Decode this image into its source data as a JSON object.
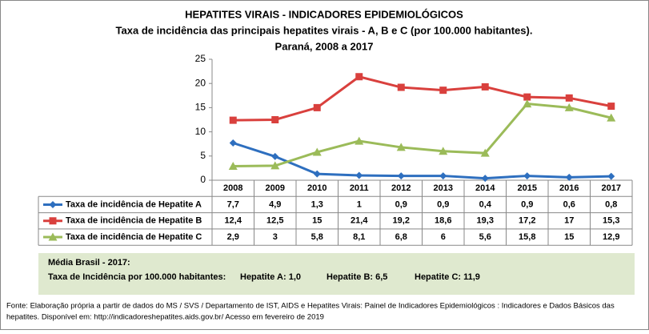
{
  "chart_data": {
    "type": "line",
    "title": "HEPATITES VIRAIS - INDICADORES EPIDEMIOLÓGICOS",
    "subtitle": "Taxa de incidência das principais hepatites virais - A, B e C (por 100.000 habitantes).",
    "period": "Paraná, 2008 a 2017",
    "categories": [
      "2008",
      "2009",
      "2010",
      "2011",
      "2012",
      "2013",
      "2014",
      "2015",
      "2016",
      "2017"
    ],
    "ylim": [
      0,
      25
    ],
    "yticks": [
      0,
      5,
      10,
      15,
      20,
      25
    ],
    "grid": false,
    "series": [
      {
        "name": "Taxa de incidência de Hepatite A",
        "color": "#2e6fbf",
        "marker": "diamond",
        "values": [
          7.7,
          4.9,
          1.3,
          1,
          0.9,
          0.9,
          0.4,
          0.9,
          0.6,
          0.8
        ],
        "value_labels": [
          "7,7",
          "4,9",
          "1,3",
          "1",
          "0,9",
          "0,9",
          "0,4",
          "0,9",
          "0,6",
          "0,8"
        ]
      },
      {
        "name": "Taxa de incidência de Hepatite B",
        "color": "#d9403d",
        "marker": "square",
        "values": [
          12.4,
          12.5,
          15,
          21.4,
          19.2,
          18.6,
          19.3,
          17.2,
          17,
          15.3
        ],
        "value_labels": [
          "12,4",
          "12,5",
          "15",
          "21,4",
          "19,2",
          "18,6",
          "19,3",
          "17,2",
          "17",
          "15,3"
        ]
      },
      {
        "name": "Taxa de incidência de Hepatite C",
        "color": "#9bbb59",
        "marker": "triangle",
        "values": [
          2.9,
          3,
          5.8,
          8.1,
          6.8,
          6,
          5.6,
          15.8,
          15,
          12.9
        ],
        "value_labels": [
          "2,9",
          "3",
          "5,8",
          "8,1",
          "6,8",
          "6",
          "5,6",
          "15,8",
          "15",
          "12,9"
        ]
      }
    ]
  },
  "note": {
    "heading": "Média Brasil - 2017:",
    "label": "Taxa  de Incidência  por 100.000 habitantes:",
    "items": [
      "Hepatite A: 1,0",
      "Hepatite B: 6,5",
      "Hepatite C: 11,9"
    ]
  },
  "source": [
    "Fonte: Elaboração própria a partir de dados do MS / SVS / Departamento de IST, AIDS e Hepatites Virais:  Painel de Indicadores Epidemiológicos : Indicadores e Dados Básicos das",
    "hepatites.  Disponível em: http://indicadoreshepatites.aids.gov.br/     Acesso em fevereiro de 2019"
  ]
}
